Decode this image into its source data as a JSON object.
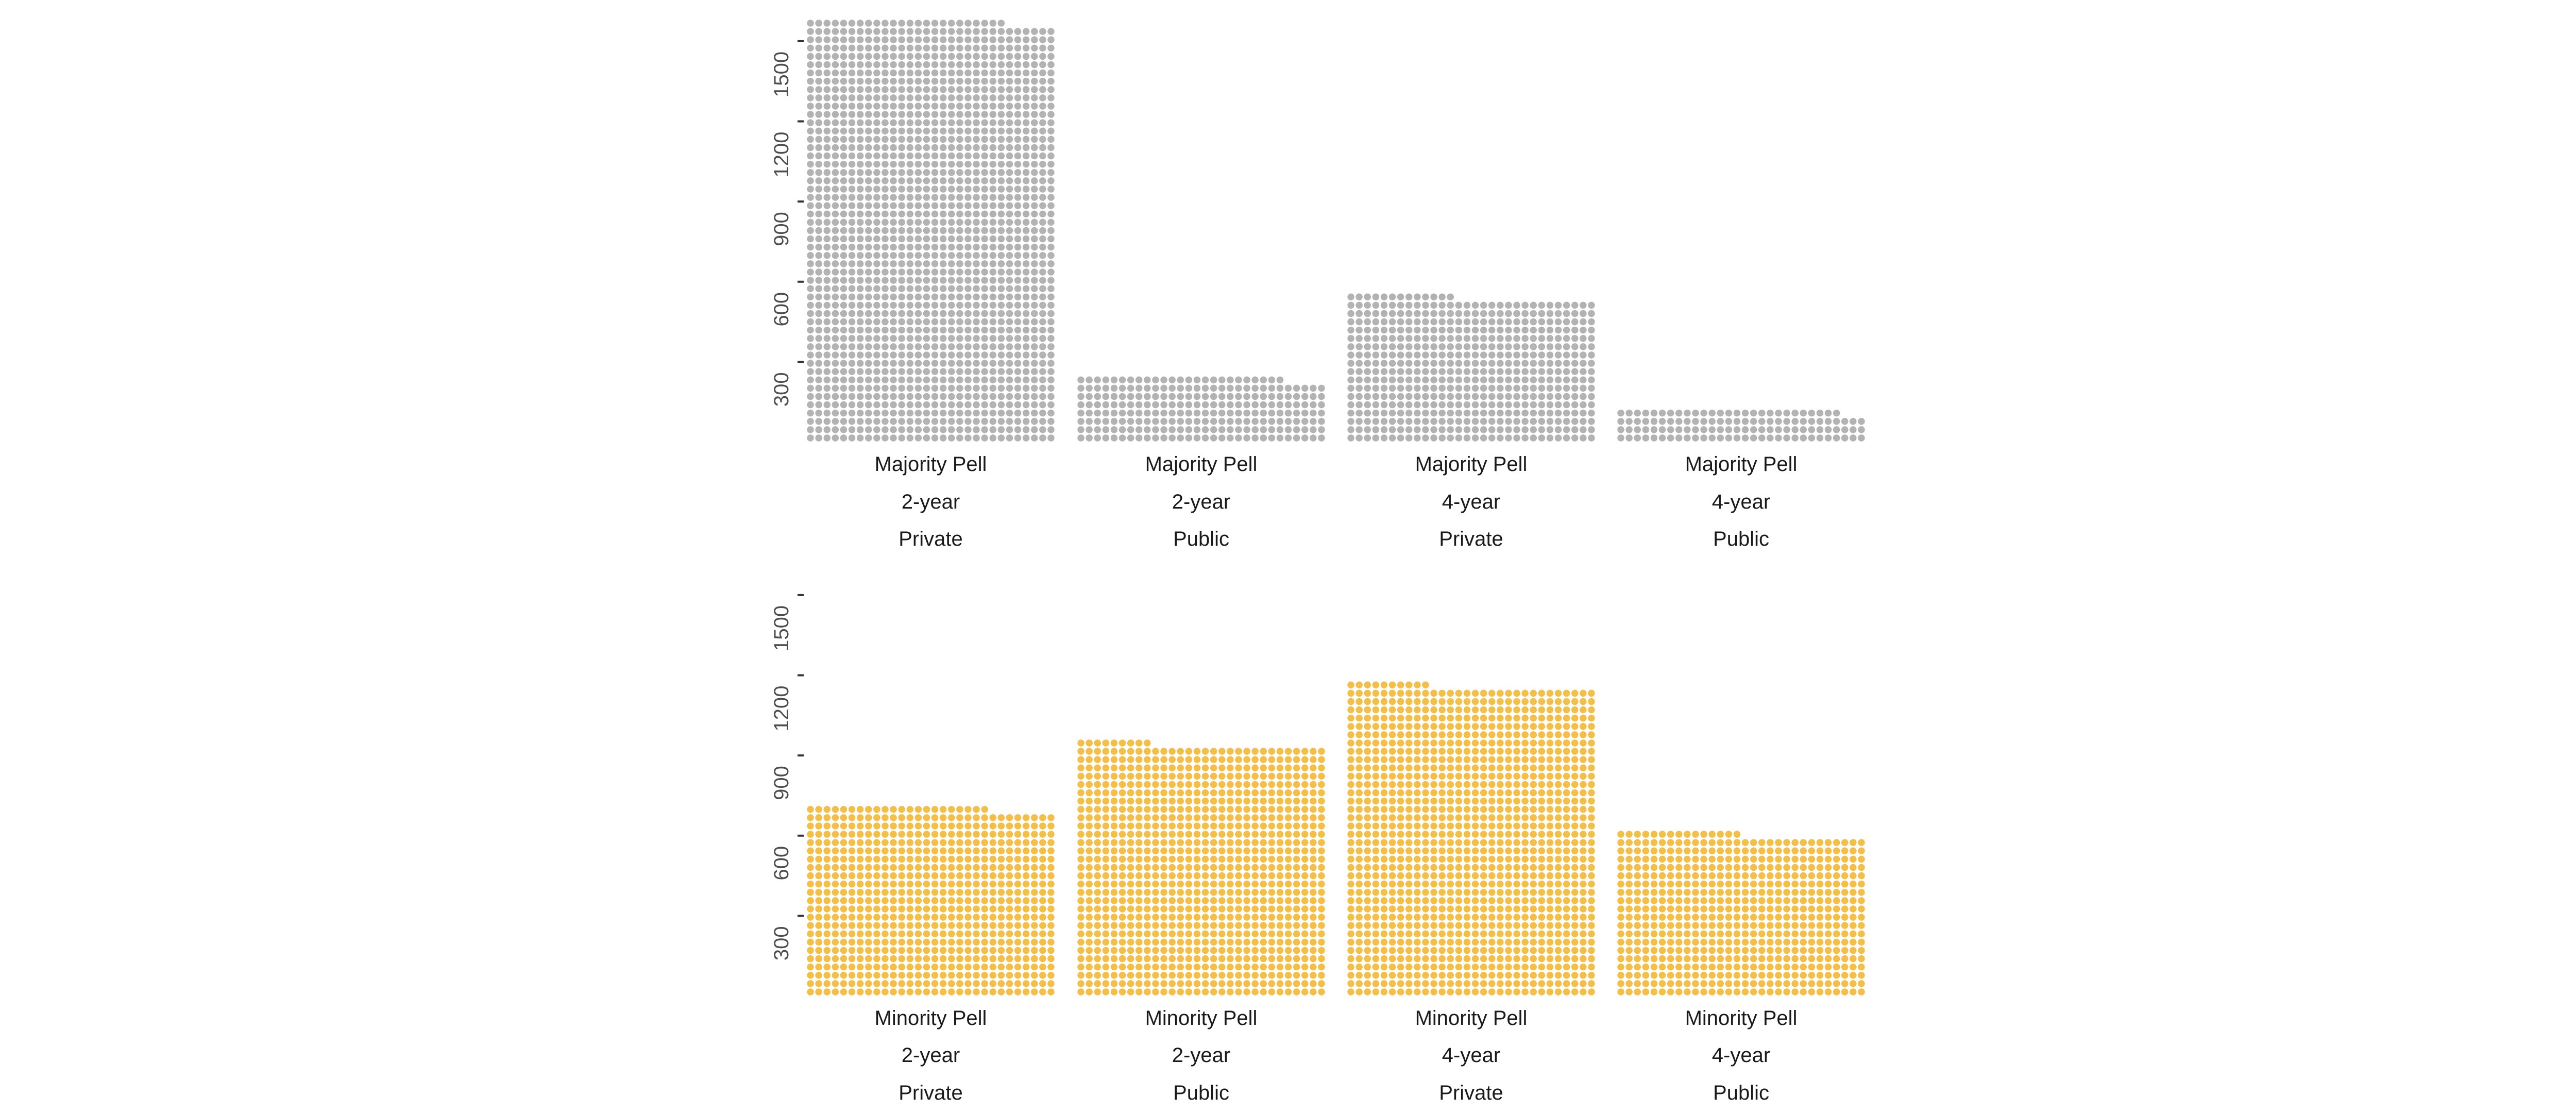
{
  "chart_data": [
    {
      "type": "waffle",
      "title": "",
      "xlabel": "",
      "ylabel": "",
      "ylim": [
        0,
        1600
      ],
      "yticks": [
        300,
        600,
        900,
        1200,
        1500
      ],
      "dot_color": "#b3b3b3",
      "grid": false,
      "units_per_row": 30,
      "categories": [
        {
          "pell": "Majority Pell",
          "length": "2-year",
          "sector": "Private",
          "value": 1577
        },
        {
          "pell": "Majority Pell",
          "length": "2-year",
          "sector": "Public",
          "value": 243
        },
        {
          "pell": "Majority Pell",
          "length": "4-year",
          "sector": "Private",
          "value": 541
        },
        {
          "pell": "Majority Pell",
          "length": "4-year",
          "sector": "Public",
          "value": 121
        }
      ]
    },
    {
      "type": "waffle",
      "title": "",
      "xlabel": "",
      "ylabel": "",
      "ylim": [
        0,
        1600
      ],
      "yticks": [
        300,
        600,
        900,
        1200,
        1500
      ],
      "dot_color": "#f4bf46",
      "grid": false,
      "units_per_row": 30,
      "categories": [
        {
          "pell": "Minority Pell",
          "length": "2-year",
          "sector": "Private",
          "value": 706
        },
        {
          "pell": "Minority Pell",
          "length": "2-year",
          "sector": "Public",
          "value": 940
        },
        {
          "pell": "Minority Pell",
          "length": "4-year",
          "sector": "Private",
          "value": 1159
        },
        {
          "pell": "Minority Pell",
          "length": "4-year",
          "sector": "Public",
          "value": 605
        }
      ]
    }
  ]
}
